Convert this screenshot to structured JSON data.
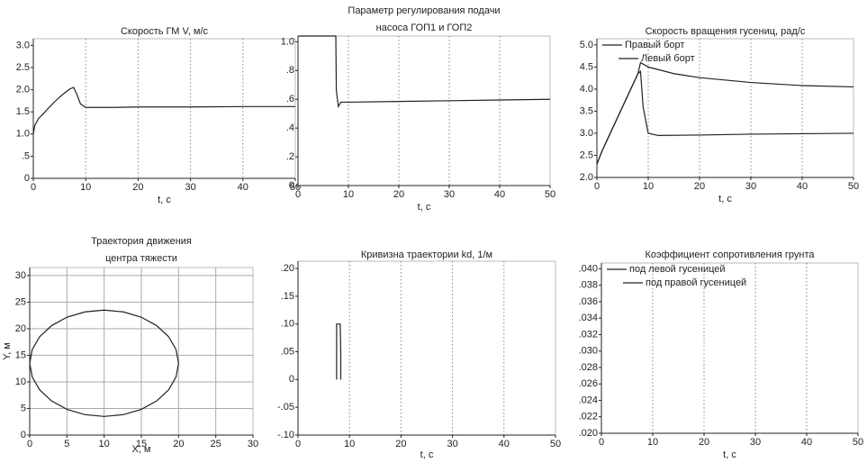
{
  "chart_data": [
    {
      "type": "line",
      "title": "Скорость ГМ V, м/с",
      "xlabel": "t, c",
      "xlim": [
        0,
        50
      ],
      "xticks": [
        0,
        10,
        20,
        30,
        40,
        50
      ],
      "ylim": [
        0,
        3.15
      ],
      "yticks": [
        0,
        {
          "value": 0.5,
          "label": ".5"
        },
        {
          "value": 1,
          "label": "1.0"
        },
        {
          "value": 1.5,
          "label": "1.5"
        },
        {
          "value": 2,
          "label": "2.0"
        },
        {
          "value": 2.5,
          "label": "2.5"
        },
        {
          "value": 3,
          "label": "3.0"
        }
      ],
      "grid": "x",
      "grid_style": "dotted",
      "series": [
        {
          "color": "#222222",
          "x": [
            0,
            0.3,
            1,
            2,
            3,
            4,
            5,
            6,
            7,
            7.7,
            8.3,
            9,
            10,
            15,
            20,
            30,
            40,
            50
          ],
          "values": [
            1.0,
            1.2,
            1.35,
            1.47,
            1.6,
            1.72,
            1.83,
            1.93,
            2.02,
            2.05,
            1.9,
            1.68,
            1.6,
            1.6,
            1.61,
            1.61,
            1.62,
            1.62
          ]
        }
      ]
    },
    {
      "type": "line",
      "title": [
        "Параметр регулирования подачи",
        "насоса ГОП1 и ГОП2"
      ],
      "xlabel": "t, c",
      "xlim": [
        0,
        50
      ],
      "xticks": [
        0,
        10,
        20,
        30,
        40,
        50
      ],
      "ylim": [
        0,
        1.04
      ],
      "yticks": [
        0,
        {
          "value": 0.2,
          "label": ".2"
        },
        {
          "value": 0.4,
          "label": ".4"
        },
        {
          "value": 0.6,
          "label": ".6"
        },
        {
          "value": 0.8,
          "label": ".8"
        },
        {
          "value": 1,
          "label": "1.0"
        }
      ],
      "grid": "x",
      "grid_style": "dotted",
      "series": [
        {
          "color": "#222222",
          "x": [
            0,
            7.5,
            7.6,
            8,
            8.5,
            9,
            10,
            20,
            30,
            40,
            50
          ],
          "values": [
            1.04,
            1.04,
            0.66,
            0.55,
            0.58,
            0.58,
            0.58,
            0.585,
            0.59,
            0.595,
            0.6
          ]
        }
      ]
    },
    {
      "type": "line",
      "title": "Скорость вращения гусениц, рад/с",
      "xlabel": "t, c",
      "xlim": [
        0,
        50
      ],
      "xticks": [
        0,
        10,
        20,
        30,
        40,
        50
      ],
      "ylim": [
        2.0,
        5.14
      ],
      "yticks": [
        {
          "value": 2,
          "label": "2.0"
        },
        {
          "value": 2.5,
          "label": "2.5"
        },
        {
          "value": 3,
          "label": "3.0"
        },
        {
          "value": 3.5,
          "label": "3.5"
        },
        {
          "value": 4,
          "label": "4.0"
        },
        {
          "value": 4.5,
          "label": "4.5"
        },
        {
          "value": 5,
          "label": "5.0"
        }
      ],
      "grid": "x",
      "grid_style": "dotted",
      "legend": "upper-left",
      "series": [
        {
          "name": "Правый борт",
          "color": "#222222",
          "x": [
            0,
            1,
            2,
            4,
            6,
            8,
            8.5,
            9,
            10,
            12,
            20,
            30,
            40,
            50
          ],
          "values": [
            2.3,
            2.6,
            2.85,
            3.35,
            3.85,
            4.35,
            4.4,
            3.6,
            3.0,
            2.95,
            2.96,
            2.98,
            2.99,
            3.0
          ]
        },
        {
          "name": "Левый борт",
          "color": "#222222",
          "x": [
            0,
            1,
            2,
            4,
            6,
            8,
            8.5,
            10,
            15,
            20,
            30,
            40,
            50
          ],
          "values": [
            2.3,
            2.6,
            2.85,
            3.35,
            3.85,
            4.35,
            4.6,
            4.5,
            4.35,
            4.26,
            4.15,
            4.08,
            4.05
          ]
        }
      ]
    },
    {
      "type": "line",
      "title": [
        "Траектория движения",
        "центра тяжести"
      ],
      "xlabel": "X, м",
      "ylabel": "Y, м",
      "xlim": [
        0,
        30
      ],
      "xticks": [
        0,
        5,
        10,
        15,
        20,
        25,
        30
      ],
      "ylim": [
        0,
        31.5
      ],
      "yticks": [
        0,
        5,
        10,
        15,
        20,
        25,
        30
      ],
      "grid": "both",
      "grid_style": "solid",
      "series": [
        {
          "color": "#222222",
          "x": [
            20,
            19.66,
            18.66,
            17.07,
            15,
            12.59,
            10,
            7.41,
            5,
            2.93,
            1.34,
            0.34,
            0,
            0.34,
            1.34,
            2.93,
            5,
            7.41,
            10,
            12.59,
            15,
            17.07,
            18.66,
            19.66,
            20
          ],
          "values": [
            13.5,
            16.09,
            18.5,
            20.57,
            22.16,
            23.16,
            23.5,
            23.16,
            22.16,
            20.57,
            18.5,
            16.09,
            13.5,
            10.91,
            8.5,
            6.43,
            4.84,
            3.84,
            3.5,
            3.84,
            4.84,
            6.43,
            8.5,
            10.91,
            13.5
          ]
        }
      ]
    },
    {
      "type": "line",
      "title": "Кривизна траектории kd, 1/м",
      "xlabel": "t, c",
      "xlim": [
        0,
        50
      ],
      "xticks": [
        0,
        10,
        20,
        30,
        40,
        50
      ],
      "ylim": [
        -0.1,
        0.213
      ],
      "yticks": [
        {
          "value": -0.1,
          "label": "-.10"
        },
        {
          "value": -0.05,
          "label": "-.05"
        },
        0,
        {
          "value": 0.05,
          "label": ".05"
        },
        {
          "value": 0.1,
          "label": ".10"
        },
        {
          "value": 0.15,
          "label": ".15"
        },
        {
          "value": 0.2,
          "label": ".20"
        }
      ],
      "grid": "x",
      "grid_style": "dotted",
      "series": [
        {
          "color": "#222222",
          "x": [
            7.5,
            7.5,
            8.2,
            8.3,
            8.3
          ],
          "values": [
            0,
            0.1,
            0.1,
            0.05,
            0
          ]
        }
      ]
    },
    {
      "type": "line",
      "title": "Коэффициент сопротивления грунта",
      "xlabel": "t, c",
      "xlim": [
        0,
        50
      ],
      "xticks": [
        0,
        10,
        20,
        30,
        40,
        50
      ],
      "ylim": [
        0.02,
        0.0407
      ],
      "yticks": [
        {
          "value": 0.02,
          "label": ".020"
        },
        {
          "value": 0.022,
          "label": ".022"
        },
        {
          "value": 0.024,
          "label": ".024"
        },
        {
          "value": 0.026,
          "label": ".026"
        },
        {
          "value": 0.028,
          "label": ".028"
        },
        {
          "value": 0.03,
          "label": ".030"
        },
        {
          "value": 0.032,
          "label": ".032"
        },
        {
          "value": 0.034,
          "label": ".034"
        },
        {
          "value": 0.036,
          "label": ".036"
        },
        {
          "value": 0.038,
          "label": ".038"
        },
        {
          "value": 0.04,
          "label": ".040"
        }
      ],
      "grid": "x",
      "grid_style": "dotted",
      "legend": "upper-left",
      "series": [
        {
          "name": "под левой гусеницей",
          "color": "#222222",
          "x": [],
          "values": []
        },
        {
          "name": "под правой гусеницей",
          "color": "#222222",
          "x": [],
          "values": []
        }
      ]
    }
  ]
}
